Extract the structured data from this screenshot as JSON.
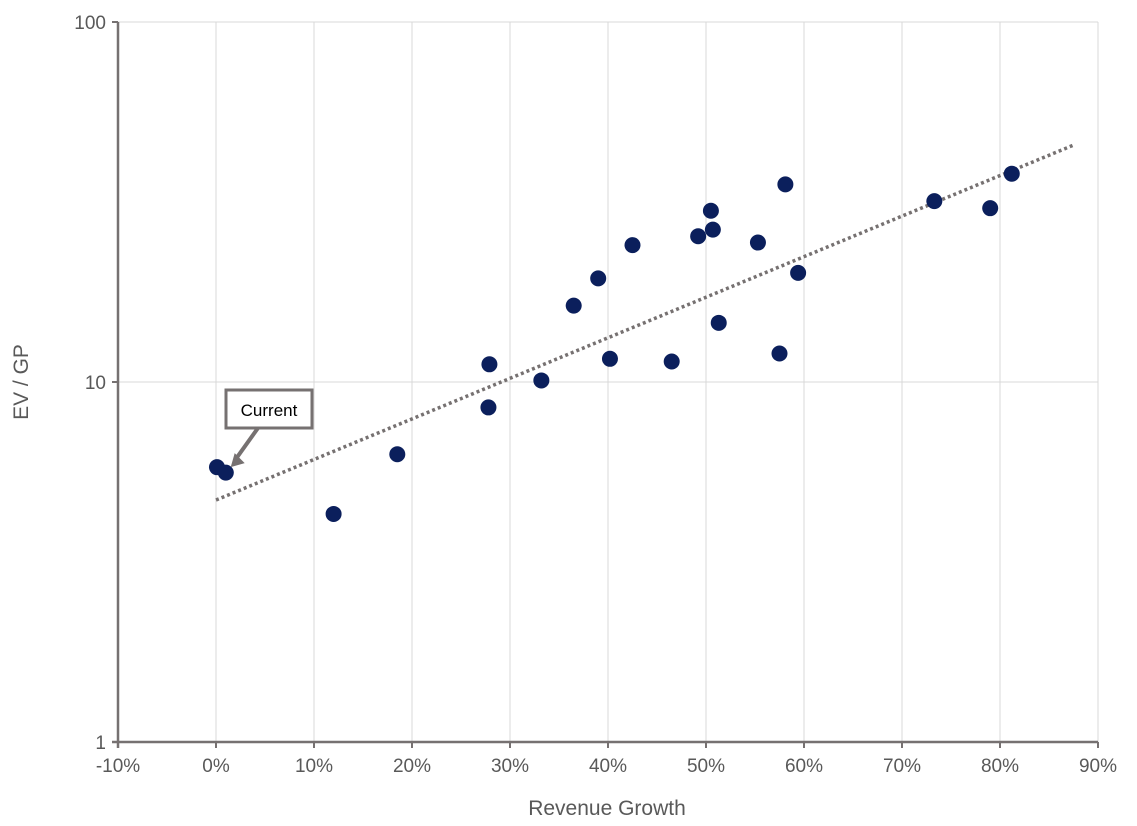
{
  "chart_data": {
    "type": "scatter",
    "title": "",
    "xlabel": "Revenue Growth",
    "ylabel": "EV / GP",
    "xlim": [
      -0.1,
      0.9
    ],
    "ylim": [
      1,
      100
    ],
    "y_scale": "log",
    "x_ticks": [
      -0.1,
      0,
      0.1,
      0.2,
      0.3,
      0.4,
      0.5,
      0.6,
      0.7,
      0.8,
      0.9
    ],
    "x_tick_labels": [
      "-10%",
      "0%",
      "10%",
      "20%",
      "30%",
      "40%",
      "50%",
      "60%",
      "70%",
      "80%",
      "90%"
    ],
    "y_ticks": [
      1,
      10,
      100
    ],
    "y_tick_labels": [
      "1",
      "10",
      "100"
    ],
    "grid": true,
    "series": [
      {
        "color": "#0b1f5c",
        "points": [
          {
            "x": 0.001,
            "y": 5.8
          },
          {
            "x": 0.01,
            "y": 5.6
          },
          {
            "x": 0.12,
            "y": 4.3
          },
          {
            "x": 0.185,
            "y": 6.3
          },
          {
            "x": 0.279,
            "y": 11.2
          },
          {
            "x": 0.278,
            "y": 8.5
          },
          {
            "x": 0.332,
            "y": 10.1
          },
          {
            "x": 0.365,
            "y": 16.3
          },
          {
            "x": 0.39,
            "y": 19.4
          },
          {
            "x": 0.402,
            "y": 11.6
          },
          {
            "x": 0.425,
            "y": 24.0
          },
          {
            "x": 0.465,
            "y": 11.4
          },
          {
            "x": 0.492,
            "y": 25.4
          },
          {
            "x": 0.505,
            "y": 29.9
          },
          {
            "x": 0.507,
            "y": 26.5
          },
          {
            "x": 0.513,
            "y": 14.6
          },
          {
            "x": 0.553,
            "y": 24.4
          },
          {
            "x": 0.575,
            "y": 12.0
          },
          {
            "x": 0.581,
            "y": 35.4
          },
          {
            "x": 0.594,
            "y": 20.1
          },
          {
            "x": 0.733,
            "y": 31.8
          },
          {
            "x": 0.79,
            "y": 30.4
          },
          {
            "x": 0.812,
            "y": 37.9
          }
        ]
      }
    ],
    "trendline": {
      "type": "exponential",
      "style": "dotted",
      "color": "#767171",
      "x_range": [
        0.0,
        0.875
      ],
      "y_start": 4.7,
      "y_end": 45.5
    },
    "annotations": [
      {
        "text": "Current",
        "target": {
          "x": 0.015,
          "y": 5.8
        }
      }
    ]
  }
}
